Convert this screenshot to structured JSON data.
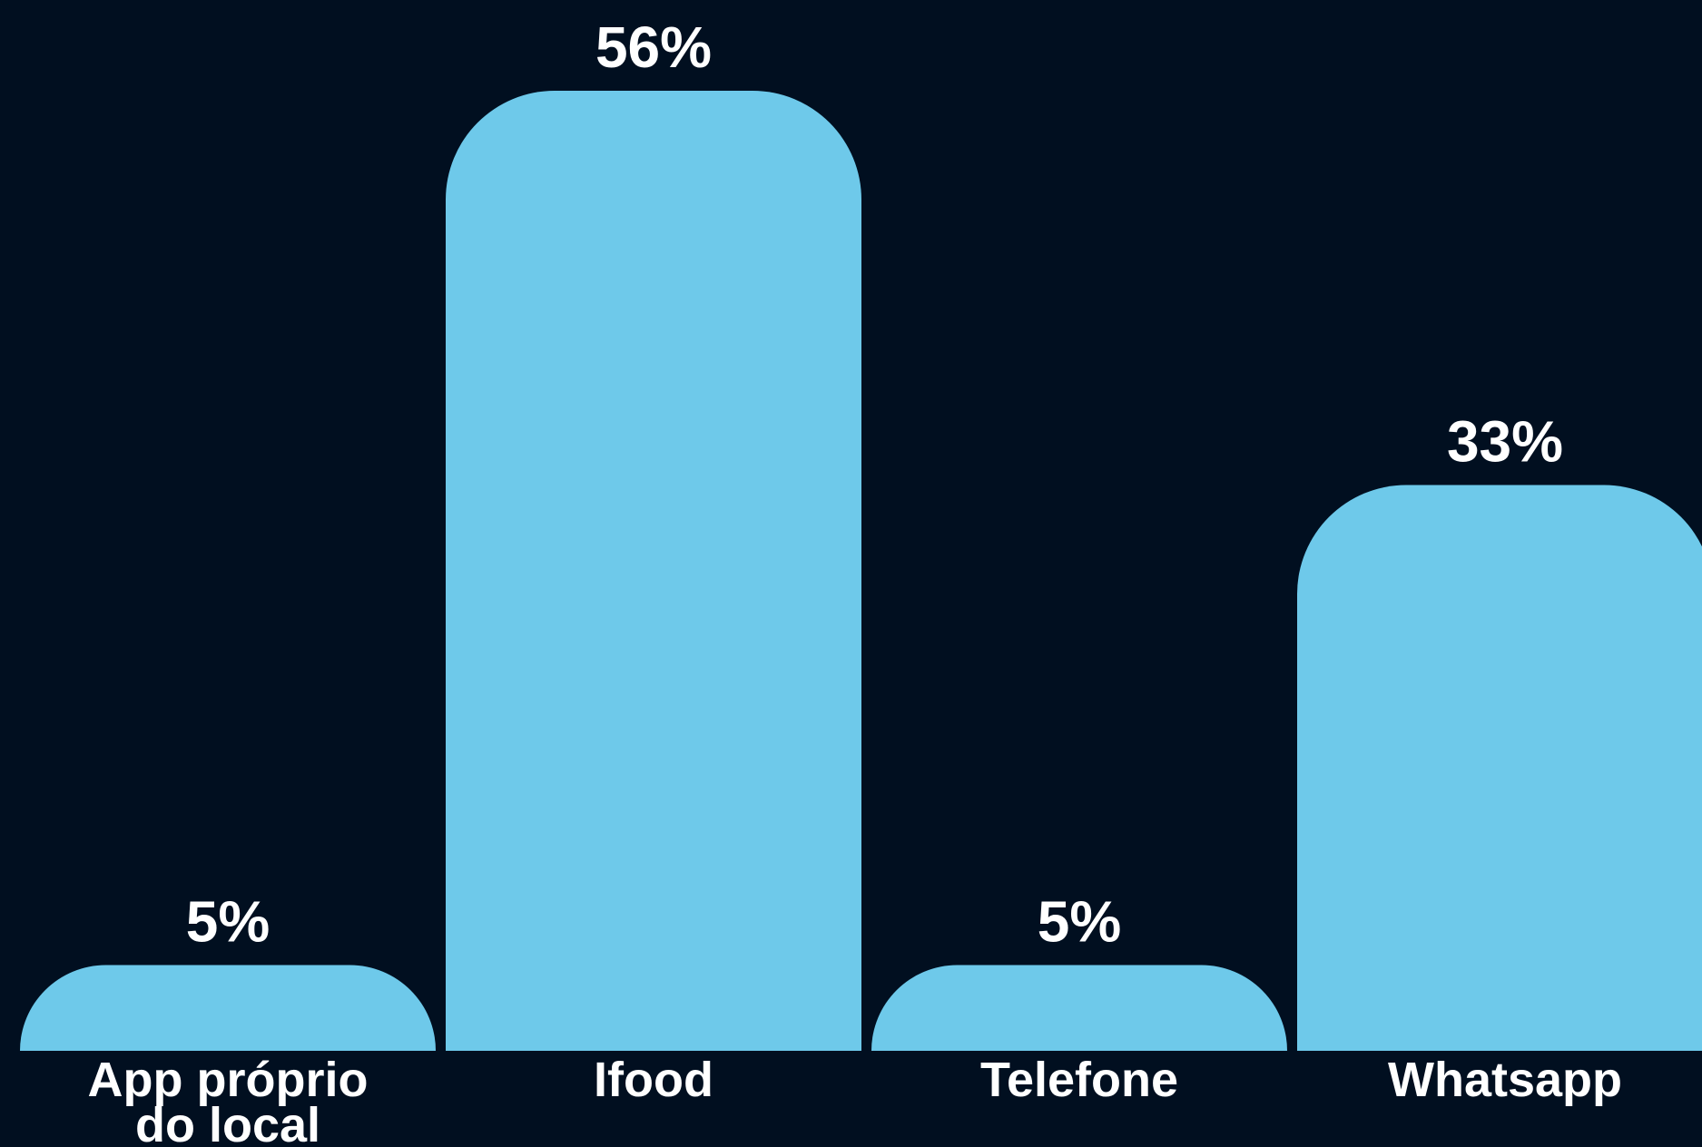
{
  "chart_data": {
    "type": "bar",
    "categories": [
      [
        "App próprio",
        "do local"
      ],
      [
        "Ifood"
      ],
      [
        "Telefone"
      ],
      [
        "Whatsapp"
      ]
    ],
    "values": [
      5,
      56,
      5,
      33
    ],
    "data_labels": [
      "5%",
      "56%",
      "5%",
      "33%"
    ],
    "value_unit": "%",
    "ylim": [
      0,
      56
    ],
    "bar_color": "#6ec9ea",
    "background_color": "#010f20",
    "label_color": "#ffffff",
    "grid": false,
    "legend": "none",
    "title": "",
    "xlabel": "",
    "ylabel": ""
  }
}
